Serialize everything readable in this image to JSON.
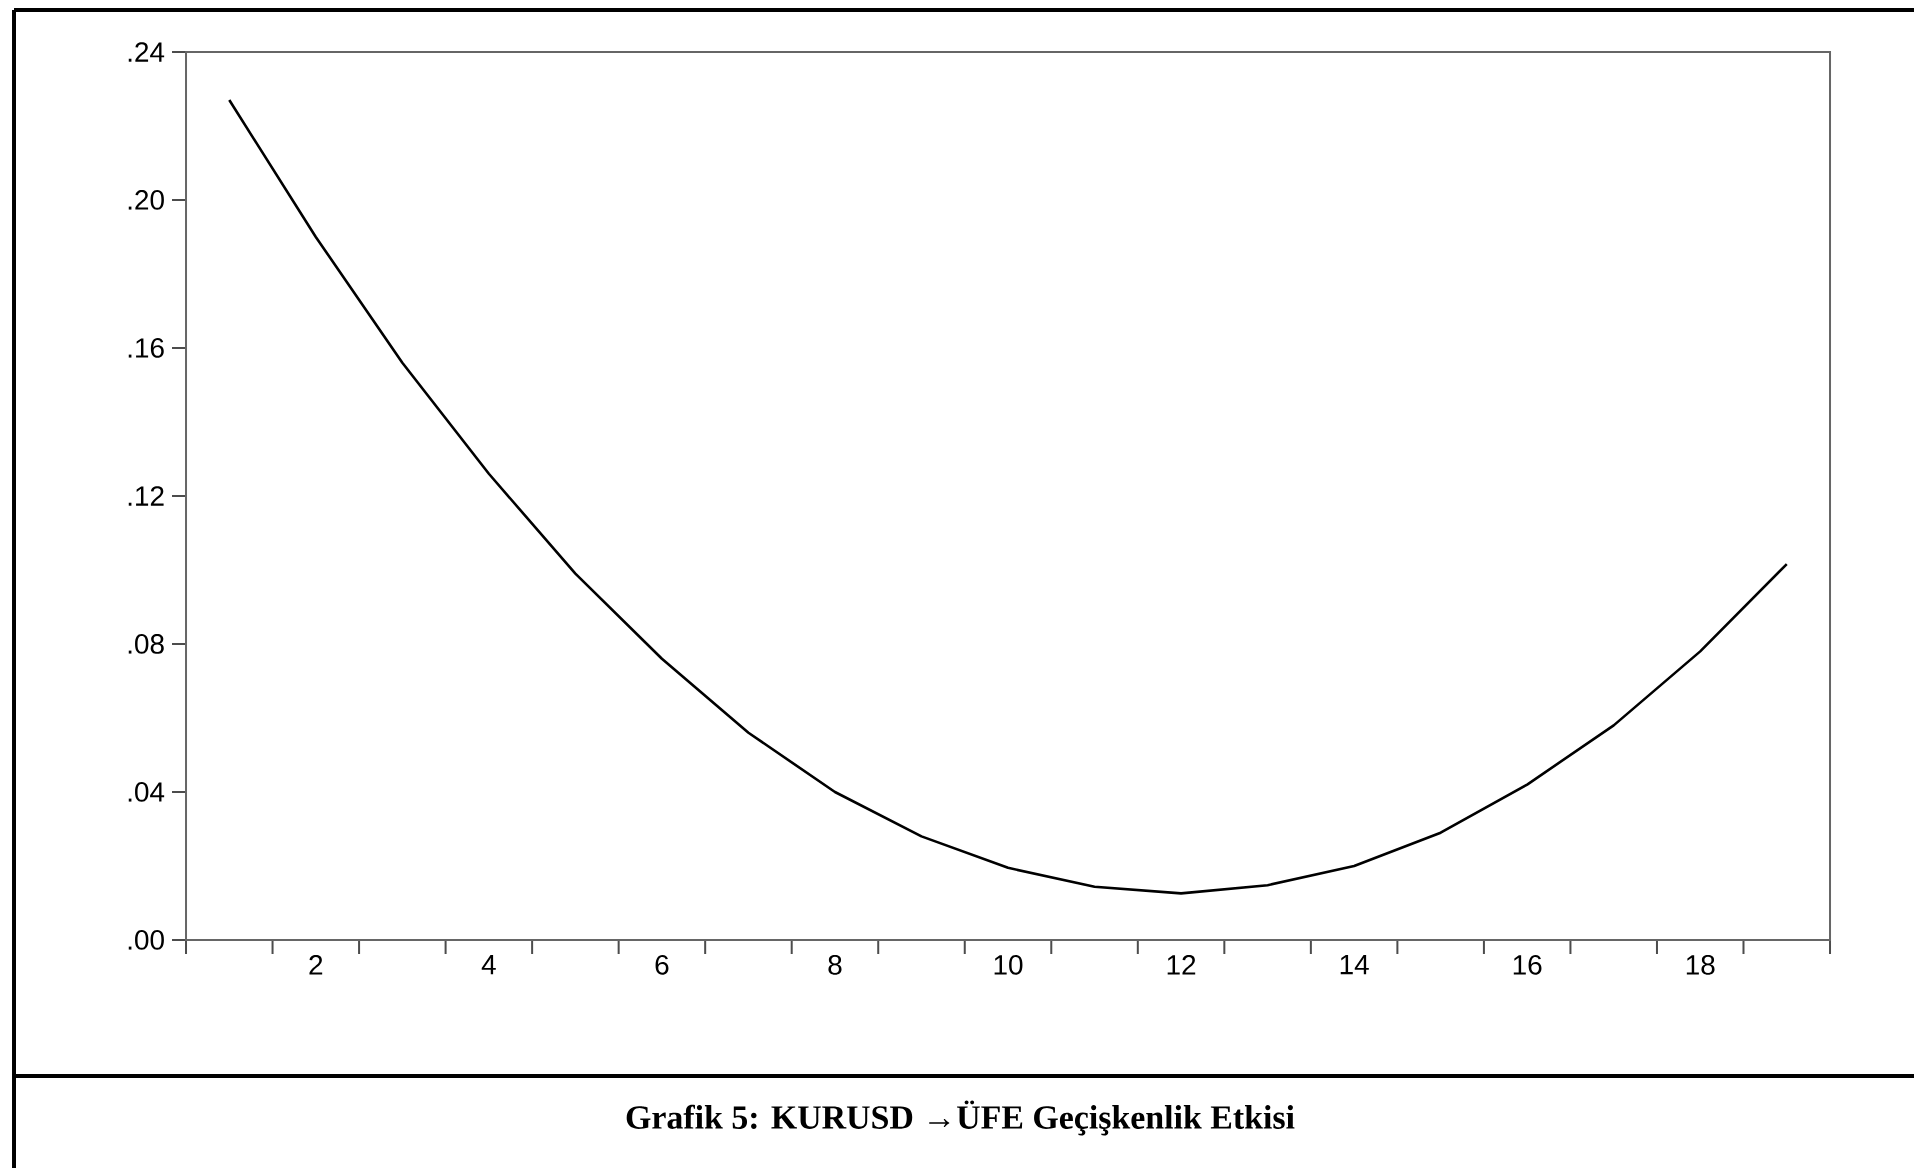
{
  "chart_data": {
    "type": "line",
    "title": "Grafik 5: KURUSD →ÜFE Geçişkenlik Etkisi",
    "categories": [
      null,
      "2",
      null,
      "4",
      null,
      "6",
      null,
      "8",
      null,
      "10",
      null,
      "12",
      null,
      "14",
      null,
      "16",
      null,
      "18",
      null
    ],
    "series": [
      {
        "color": "#000000",
        "values": [
          0.227,
          0.19,
          0.156,
          0.126,
          0.099,
          0.076,
          0.056,
          0.04,
          0.028,
          0.0195,
          0.0144,
          0.0126,
          0.0148,
          0.02,
          0.029,
          0.042,
          0.058,
          0.078,
          0.1016
        ]
      }
    ],
    "ylim": [
      0,
      0.24
    ],
    "yticks": [
      {
        "value": 0,
        "label": ".00"
      },
      {
        "value": 0.04,
        "label": ".04"
      },
      {
        "value": 0.08,
        "label": ".08"
      },
      {
        "value": 0.12,
        "label": ".12"
      },
      {
        "value": 0.16,
        "label": ".16"
      },
      {
        "value": 0.2,
        "label": ".20"
      },
      {
        "value": 0.24,
        "label": ".24"
      }
    ],
    "grid": false,
    "marker": "none",
    "line_style": "solid"
  }
}
